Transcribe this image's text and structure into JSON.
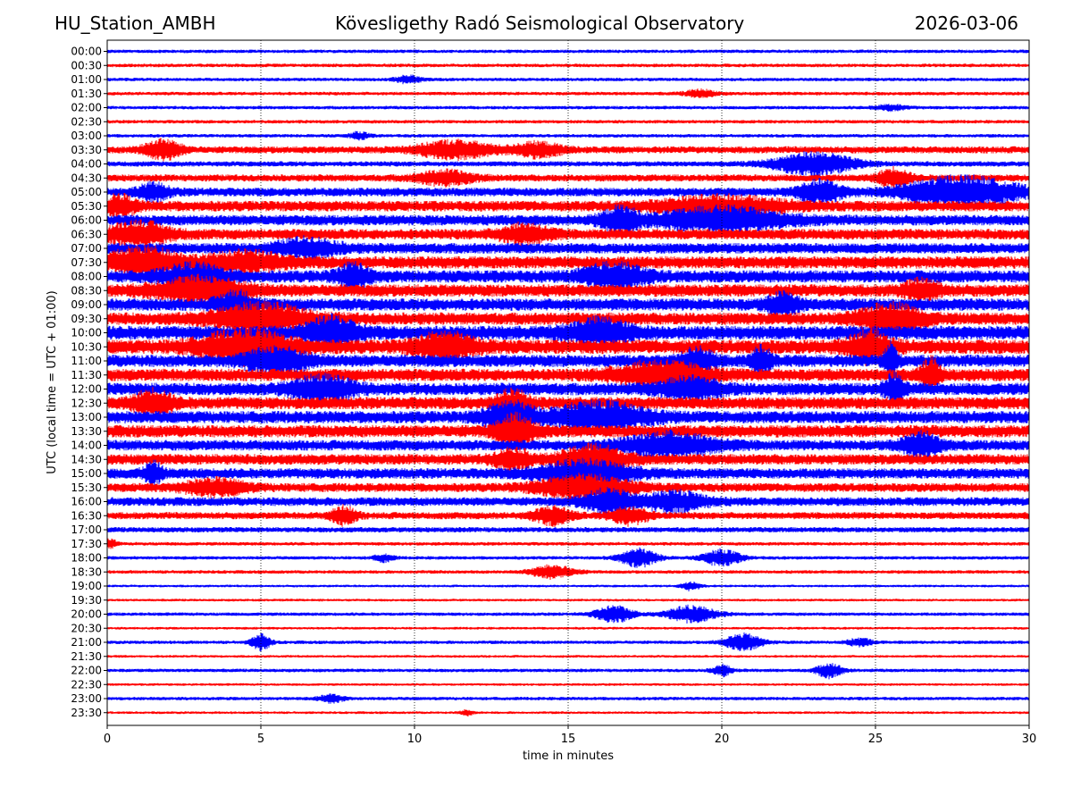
{
  "header": {
    "station": "HU_Station_AMBH",
    "observatory": "Kövesligethy Radó Seismological Observatory",
    "date": "2026-03-06"
  },
  "chart_data": {
    "type": "line",
    "title": "Kövesligethy Radó Seismological Observatory",
    "xlabel": "time in minutes",
    "ylabel": "UTC (local time = UTC + 01:00)",
    "xlim": [
      0,
      30
    ],
    "x_ticks": [
      0,
      5,
      10,
      15,
      20,
      25,
      30
    ],
    "grid": "vertical dotted at 5-minute intervals",
    "series_colors": [
      "#0000ff",
      "#ff0000"
    ],
    "rows": [
      {
        "label": "00:00",
        "amp": 2,
        "events": []
      },
      {
        "label": "00:30",
        "amp": 2,
        "events": []
      },
      {
        "label": "01:00",
        "amp": 2,
        "events": [
          {
            "t": 9.8,
            "a": 4,
            "w": 0.4
          }
        ]
      },
      {
        "label": "01:30",
        "amp": 2,
        "events": [
          {
            "t": 19.3,
            "a": 4,
            "w": 0.5
          }
        ]
      },
      {
        "label": "02:00",
        "amp": 2,
        "events": [
          {
            "t": 25.5,
            "a": 3,
            "w": 0.5
          }
        ]
      },
      {
        "label": "02:30",
        "amp": 2,
        "events": []
      },
      {
        "label": "03:00",
        "amp": 2,
        "events": [
          {
            "t": 8.2,
            "a": 4,
            "w": 0.3
          }
        ]
      },
      {
        "label": "03:30",
        "amp": 4,
        "events": [
          {
            "t": 1.8,
            "a": 10,
            "w": 0.6
          },
          {
            "t": 11.3,
            "a": 9,
            "w": 1.2
          },
          {
            "t": 14,
            "a": 7,
            "w": 0.8
          }
        ]
      },
      {
        "label": "04:00",
        "amp": 3,
        "events": [
          {
            "t": 23,
            "a": 12,
            "w": 1.3
          }
        ]
      },
      {
        "label": "04:30",
        "amp": 4,
        "events": [
          {
            "t": 11,
            "a": 7,
            "w": 0.9
          },
          {
            "t": 25.6,
            "a": 10,
            "w": 0.5
          }
        ]
      },
      {
        "label": "05:00",
        "amp": 5,
        "events": [
          {
            "t": 1.5,
            "a": 8,
            "w": 0.5
          },
          {
            "t": 23.2,
            "a": 11,
            "w": 0.7
          },
          {
            "t": 27.8,
            "a": 16,
            "w": 1.8
          }
        ]
      },
      {
        "label": "05:30",
        "amp": 6,
        "events": [
          {
            "t": 0.4,
            "a": 10,
            "w": 0.5
          },
          {
            "t": 20,
            "a": 9,
            "w": 2
          }
        ]
      },
      {
        "label": "06:00",
        "amp": 6,
        "events": [
          {
            "t": 16.7,
            "a": 12,
            "w": 0.6
          },
          {
            "t": 20,
            "a": 12,
            "w": 2
          }
        ]
      },
      {
        "label": "06:30",
        "amp": 6,
        "events": [
          {
            "t": 1,
            "a": 12,
            "w": 1
          },
          {
            "t": 13.6,
            "a": 9,
            "w": 0.8
          }
        ]
      },
      {
        "label": "07:00",
        "amp": 6,
        "events": [
          {
            "t": 6.5,
            "a": 9,
            "w": 1
          }
        ]
      },
      {
        "label": "07:30",
        "amp": 7,
        "events": [
          {
            "t": 1.2,
            "a": 14,
            "w": 1.2
          },
          {
            "t": 4.5,
            "a": 9,
            "w": 1.2
          }
        ]
      },
      {
        "label": "08:00",
        "amp": 7,
        "events": [
          {
            "t": 2.8,
            "a": 11,
            "w": 1
          },
          {
            "t": 8,
            "a": 12,
            "w": 0.5
          },
          {
            "t": 16.5,
            "a": 12,
            "w": 1
          }
        ]
      },
      {
        "label": "08:30",
        "amp": 7,
        "events": [
          {
            "t": 3,
            "a": 12,
            "w": 1.5
          },
          {
            "t": 26.5,
            "a": 9,
            "w": 0.6
          }
        ]
      },
      {
        "label": "09:00",
        "amp": 7,
        "events": [
          {
            "t": 4.2,
            "a": 12,
            "w": 0.6
          },
          {
            "t": 22,
            "a": 10,
            "w": 0.5
          }
        ]
      },
      {
        "label": "09:30",
        "amp": 7,
        "events": [
          {
            "t": 5,
            "a": 14,
            "w": 1.5
          },
          {
            "t": 25.5,
            "a": 14,
            "w": 1
          }
        ]
      },
      {
        "label": "10:00",
        "amp": 8,
        "events": [
          {
            "t": 7.3,
            "a": 14,
            "w": 0.8
          },
          {
            "t": 16,
            "a": 12,
            "w": 1
          }
        ]
      },
      {
        "label": "10:30",
        "amp": 8,
        "events": [
          {
            "t": 4.5,
            "a": 15,
            "w": 1.5
          },
          {
            "t": 11,
            "a": 12,
            "w": 1
          },
          {
            "t": 24.8,
            "a": 14,
            "w": 0.7
          }
        ]
      },
      {
        "label": "11:00",
        "amp": 7,
        "events": [
          {
            "t": 5.5,
            "a": 12,
            "w": 1
          },
          {
            "t": 19.2,
            "a": 12,
            "w": 0.5
          },
          {
            "t": 21.3,
            "a": 14,
            "w": 0.3
          },
          {
            "t": 25.5,
            "a": 18,
            "w": 0.2
          }
        ]
      },
      {
        "label": "11:30",
        "amp": 7,
        "events": [
          {
            "t": 18,
            "a": 12,
            "w": 1.5
          },
          {
            "t": 26.8,
            "a": 16,
            "w": 0.3
          }
        ]
      },
      {
        "label": "12:00",
        "amp": 7,
        "events": [
          {
            "t": 7,
            "a": 12,
            "w": 1
          },
          {
            "t": 19,
            "a": 10,
            "w": 1
          },
          {
            "t": 25.6,
            "a": 14,
            "w": 0.3
          }
        ]
      },
      {
        "label": "12:30",
        "amp": 7,
        "events": [
          {
            "t": 1.5,
            "a": 12,
            "w": 0.6
          },
          {
            "t": 13.2,
            "a": 12,
            "w": 0.5
          }
        ]
      },
      {
        "label": "13:00",
        "amp": 7,
        "events": [
          {
            "t": 13.1,
            "a": 14,
            "w": 0.8
          },
          {
            "t": 16,
            "a": 14,
            "w": 1.5
          }
        ]
      },
      {
        "label": "13:30",
        "amp": 7,
        "events": [
          {
            "t": 13.3,
            "a": 16,
            "w": 0.6
          }
        ]
      },
      {
        "label": "14:00",
        "amp": 6,
        "events": [
          {
            "t": 18.3,
            "a": 12,
            "w": 1.5
          },
          {
            "t": 26.5,
            "a": 12,
            "w": 0.6
          }
        ]
      },
      {
        "label": "14:30",
        "amp": 6,
        "events": [
          {
            "t": 13.2,
            "a": 10,
            "w": 0.6
          },
          {
            "t": 15.8,
            "a": 14,
            "w": 1
          }
        ]
      },
      {
        "label": "15:00",
        "amp": 6,
        "events": [
          {
            "t": 1.5,
            "a": 10,
            "w": 0.3
          },
          {
            "t": 15.5,
            "a": 12,
            "w": 1.5
          }
        ]
      },
      {
        "label": "15:30",
        "amp": 5,
        "events": [
          {
            "t": 3.5,
            "a": 8,
            "w": 1
          },
          {
            "t": 15.5,
            "a": 12,
            "w": 1.5
          }
        ]
      },
      {
        "label": "16:00",
        "amp": 5,
        "events": [
          {
            "t": 16.3,
            "a": 12,
            "w": 0.8
          },
          {
            "t": 18.5,
            "a": 10,
            "w": 1
          }
        ]
      },
      {
        "label": "16:30",
        "amp": 4,
        "events": [
          {
            "t": 7.7,
            "a": 9,
            "w": 0.4
          },
          {
            "t": 14.5,
            "a": 9,
            "w": 0.6
          },
          {
            "t": 17,
            "a": 9,
            "w": 0.6
          }
        ]
      },
      {
        "label": "17:00",
        "amp": 3,
        "events": []
      },
      {
        "label": "17:30",
        "amp": 2,
        "events": [
          {
            "t": 0.1,
            "a": 5,
            "w": 0.2
          }
        ]
      },
      {
        "label": "18:00",
        "amp": 2,
        "events": [
          {
            "t": 17.3,
            "a": 10,
            "w": 0.6
          },
          {
            "t": 20,
            "a": 9,
            "w": 0.6
          },
          {
            "t": 9,
            "a": 4,
            "w": 0.3
          }
        ]
      },
      {
        "label": "18:30",
        "amp": 2,
        "events": [
          {
            "t": 14.5,
            "a": 7,
            "w": 0.7
          }
        ]
      },
      {
        "label": "19:00",
        "amp": 1.5,
        "events": [
          {
            "t": 19,
            "a": 5,
            "w": 0.3
          }
        ]
      },
      {
        "label": "19:30",
        "amp": 1.5,
        "events": []
      },
      {
        "label": "20:00",
        "amp": 2,
        "events": [
          {
            "t": 16.5,
            "a": 9,
            "w": 0.6
          },
          {
            "t": 19,
            "a": 9,
            "w": 0.8
          }
        ]
      },
      {
        "label": "20:30",
        "amp": 1.5,
        "events": []
      },
      {
        "label": "21:00",
        "amp": 2,
        "events": [
          {
            "t": 5,
            "a": 9,
            "w": 0.3
          },
          {
            "t": 20.7,
            "a": 9,
            "w": 0.6
          },
          {
            "t": 24.5,
            "a": 4,
            "w": 0.4
          }
        ]
      },
      {
        "label": "21:30",
        "amp": 1.5,
        "events": []
      },
      {
        "label": "22:00",
        "amp": 2,
        "events": [
          {
            "t": 20,
            "a": 6,
            "w": 0.3
          },
          {
            "t": 23.5,
            "a": 8,
            "w": 0.4
          }
        ]
      },
      {
        "label": "22:30",
        "amp": 1.5,
        "events": []
      },
      {
        "label": "23:00",
        "amp": 2,
        "events": [
          {
            "t": 7.3,
            "a": 4,
            "w": 0.4
          }
        ]
      },
      {
        "label": "23:30",
        "amp": 1.5,
        "events": [
          {
            "t": 11.7,
            "a": 3,
            "w": 0.2
          }
        ]
      }
    ]
  }
}
